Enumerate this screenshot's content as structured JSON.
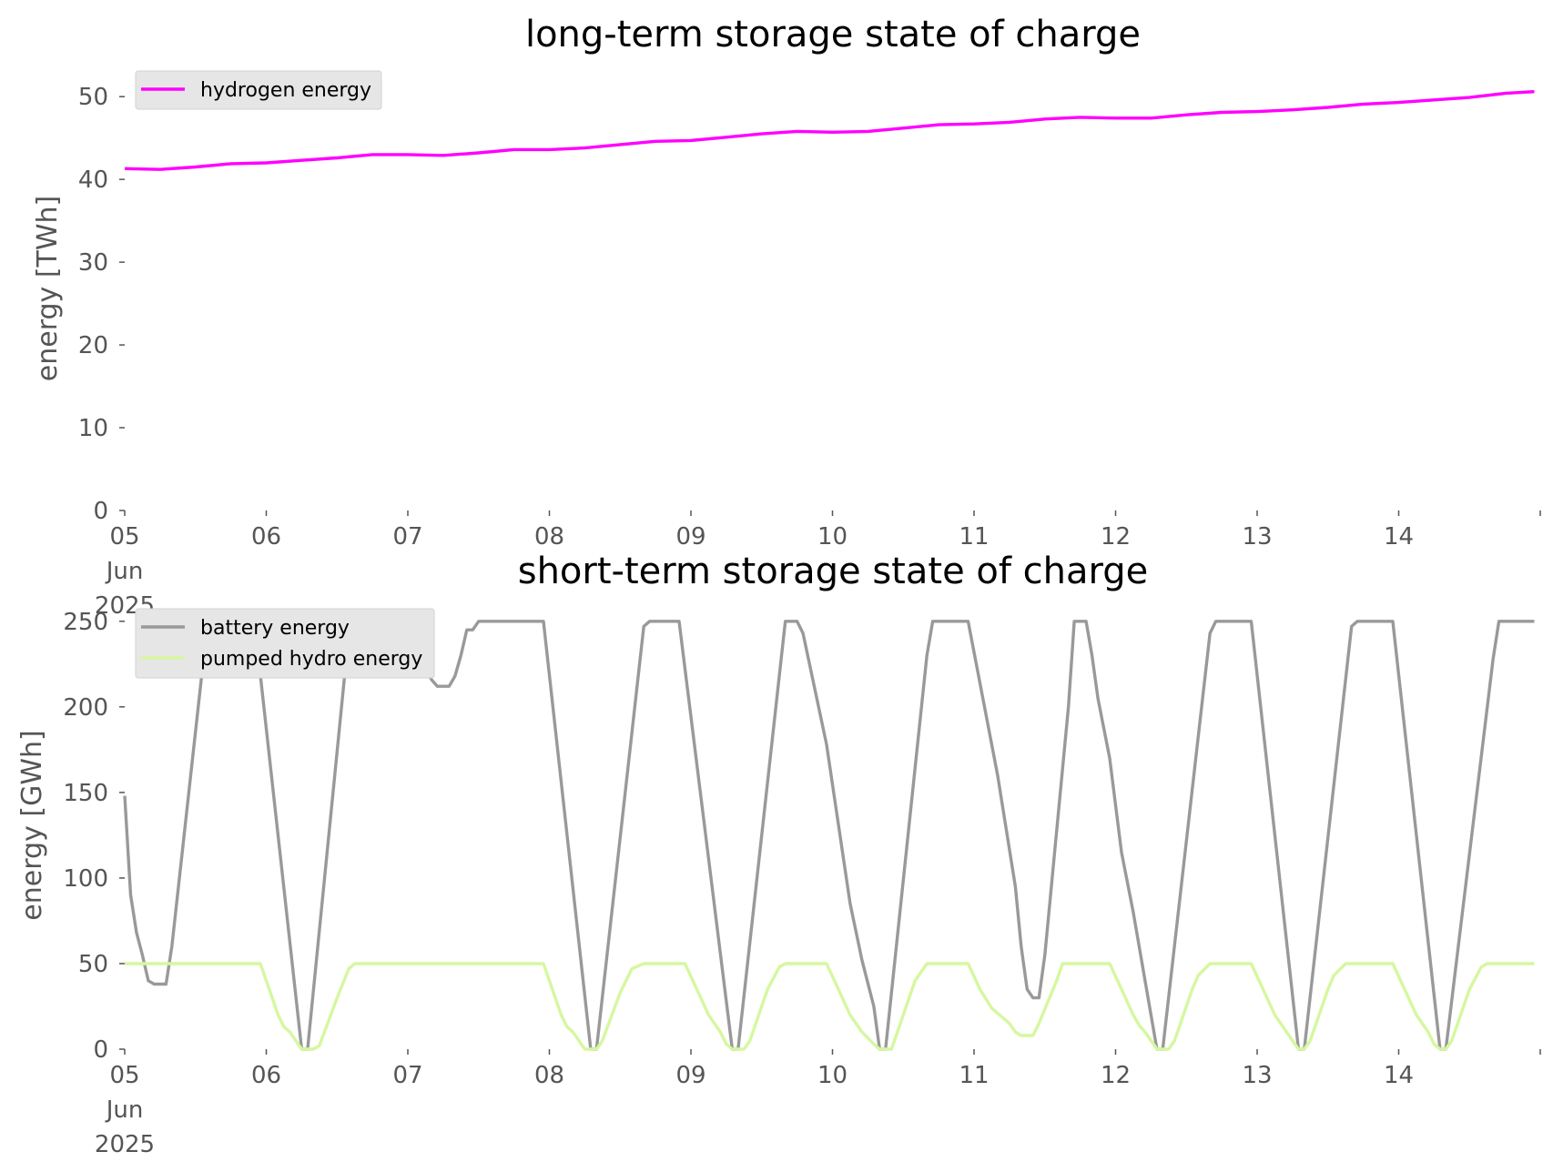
{
  "chart_data": [
    {
      "type": "line",
      "title": "long-term storage state of charge",
      "xlabel": "",
      "ylabel": "energy [TWh]",
      "ylim": [
        0,
        52
      ],
      "xlim": [
        "2025-06-05 00:00",
        "2025-06-15 00:00"
      ],
      "yticks": [
        "0",
        "10",
        "20",
        "30",
        "40",
        "50"
      ],
      "xticks": [
        "05\nJun\n2025",
        "06",
        "07",
        "08",
        "09",
        "10",
        "11",
        "12",
        "13",
        "14"
      ],
      "grid": false,
      "legend_position": "upper-left",
      "colors": {
        "hydrogen energy": "#ff00ff"
      },
      "x": [
        "2025-06-05 00:00",
        "2025-06-05 06:00",
        "2025-06-05 12:00",
        "2025-06-05 18:00",
        "2025-06-06 00:00",
        "2025-06-06 06:00",
        "2025-06-06 12:00",
        "2025-06-06 18:00",
        "2025-06-07 00:00",
        "2025-06-07 06:00",
        "2025-06-07 12:00",
        "2025-06-07 18:00",
        "2025-06-08 00:00",
        "2025-06-08 06:00",
        "2025-06-08 12:00",
        "2025-06-08 18:00",
        "2025-06-09 00:00",
        "2025-06-09 06:00",
        "2025-06-09 12:00",
        "2025-06-09 18:00",
        "2025-06-10 00:00",
        "2025-06-10 06:00",
        "2025-06-10 12:00",
        "2025-06-10 18:00",
        "2025-06-11 00:00",
        "2025-06-11 06:00",
        "2025-06-11 12:00",
        "2025-06-11 18:00",
        "2025-06-12 00:00",
        "2025-06-12 06:00",
        "2025-06-12 12:00",
        "2025-06-12 18:00",
        "2025-06-13 00:00",
        "2025-06-13 06:00",
        "2025-06-13 12:00",
        "2025-06-13 18:00",
        "2025-06-14 00:00",
        "2025-06-14 06:00",
        "2025-06-14 12:00",
        "2025-06-14 18:00",
        "2025-06-14 23:00"
      ],
      "series": [
        {
          "name": "hydrogen energy",
          "values": [
            41.3,
            41.2,
            41.5,
            41.9,
            42.0,
            42.3,
            42.6,
            43.0,
            43.0,
            42.9,
            43.2,
            43.6,
            43.6,
            43.8,
            44.2,
            44.6,
            44.7,
            45.1,
            45.5,
            45.8,
            45.7,
            45.8,
            46.2,
            46.6,
            46.7,
            46.9,
            47.3,
            47.5,
            47.4,
            47.4,
            47.8,
            48.1,
            48.2,
            48.4,
            48.7,
            49.1,
            49.3,
            49.6,
            49.9,
            50.4,
            50.6
          ]
        }
      ]
    },
    {
      "type": "line",
      "title": "short-term storage state of charge",
      "xlabel": "",
      "ylabel": "energy [GWh]",
      "ylim": [
        0,
        252
      ],
      "xlim": [
        "2025-06-05 00:00",
        "2025-06-15 00:00"
      ],
      "yticks": [
        "0",
        "50",
        "100",
        "150",
        "200",
        "250"
      ],
      "xticks": [
        "05\nJun\n2025",
        "06",
        "07",
        "08",
        "09",
        "10",
        "11",
        "12",
        "13",
        "14"
      ],
      "grid": false,
      "legend_position": "upper-left",
      "colors": {
        "battery energy": "#999999",
        "pumped hydro energy": "#d6f7a0"
      },
      "series": [
        {
          "name": "battery energy",
          "points": [
            [
              "2025-06-05 00:00",
              148
            ],
            [
              "2025-06-05 01:00",
              90
            ],
            [
              "2025-06-05 02:00",
              68
            ],
            [
              "2025-06-05 03:00",
              55
            ],
            [
              "2025-06-05 04:00",
              40
            ],
            [
              "2025-06-05 05:00",
              38
            ],
            [
              "2025-06-05 07:00",
              38
            ],
            [
              "2025-06-05 08:00",
              60
            ],
            [
              "2025-06-05 14:00",
              248
            ],
            [
              "2025-06-05 15:00",
              250
            ],
            [
              "2025-06-05 22:00",
              250
            ],
            [
              "2025-06-06 06:00",
              0
            ],
            [
              "2025-06-06 07:00",
              0
            ],
            [
              "2025-06-06 14:00",
              243
            ],
            [
              "2025-06-06 15:00",
              250
            ],
            [
              "2025-06-06 22:00",
              250
            ],
            [
              "2025-06-07 02:00",
              228
            ],
            [
              "2025-06-07 04:00",
              216
            ],
            [
              "2025-06-07 05:00",
              212
            ],
            [
              "2025-06-07 07:00",
              212
            ],
            [
              "2025-06-07 08:00",
              218
            ],
            [
              "2025-06-07 09:00",
              230
            ],
            [
              "2025-06-07 10:00",
              245
            ],
            [
              "2025-06-07 11:00",
              245
            ],
            [
              "2025-06-07 12:00",
              250
            ],
            [
              "2025-06-07 23:00",
              250
            ],
            [
              "2025-06-08 07:00",
              0
            ],
            [
              "2025-06-08 08:00",
              0
            ],
            [
              "2025-06-08 16:00",
              247
            ],
            [
              "2025-06-08 17:00",
              250
            ],
            [
              "2025-06-08 22:00",
              250
            ],
            [
              "2025-06-09 07:00",
              0
            ],
            [
              "2025-06-09 08:00",
              0
            ],
            [
              "2025-06-09 16:00",
              250
            ],
            [
              "2025-06-09 18:00",
              250
            ],
            [
              "2025-06-09 19:00",
              243
            ],
            [
              "2025-06-09 23:00",
              178
            ],
            [
              "2025-06-10 03:00",
              85
            ],
            [
              "2025-06-10 05:00",
              52
            ],
            [
              "2025-06-10 07:00",
              25
            ],
            [
              "2025-06-10 08:00",
              0
            ],
            [
              "2025-06-10 09:00",
              0
            ],
            [
              "2025-06-10 16:00",
              230
            ],
            [
              "2025-06-10 17:00",
              250
            ],
            [
              "2025-06-10 23:00",
              250
            ],
            [
              "2025-06-11 04:00",
              160
            ],
            [
              "2025-06-11 07:00",
              95
            ],
            [
              "2025-06-11 08:00",
              60
            ],
            [
              "2025-06-11 09:00",
              35
            ],
            [
              "2025-06-11 10:00",
              30
            ],
            [
              "2025-06-11 11:00",
              30
            ],
            [
              "2025-06-11 12:00",
              55
            ],
            [
              "2025-06-11 16:00",
              200
            ],
            [
              "2025-06-11 17:00",
              250
            ],
            [
              "2025-06-11 19:00",
              250
            ],
            [
              "2025-06-11 20:00",
              230
            ],
            [
              "2025-06-11 21:00",
              205
            ],
            [
              "2025-06-11 23:00",
              170
            ],
            [
              "2025-06-12 01:00",
              115
            ],
            [
              "2025-06-12 03:00",
              80
            ],
            [
              "2025-06-12 05:00",
              40
            ],
            [
              "2025-06-12 07:00",
              0
            ],
            [
              "2025-06-12 08:00",
              0
            ],
            [
              "2025-06-12 16:00",
              243
            ],
            [
              "2025-06-12 17:00",
              250
            ],
            [
              "2025-06-12 23:00",
              250
            ],
            [
              "2025-06-13 07:00",
              0
            ],
            [
              "2025-06-13 08:00",
              0
            ],
            [
              "2025-06-13 16:00",
              247
            ],
            [
              "2025-06-13 17:00",
              250
            ],
            [
              "2025-06-13 23:00",
              250
            ],
            [
              "2025-06-14 07:00",
              0
            ],
            [
              "2025-06-14 08:00",
              0
            ],
            [
              "2025-06-14 16:00",
              228
            ],
            [
              "2025-06-14 17:00",
              250
            ],
            [
              "2025-06-14 23:00",
              250
            ]
          ]
        },
        {
          "name": "pumped hydro energy",
          "points": [
            [
              "2025-06-05 00:00",
              50
            ],
            [
              "2025-06-05 23:00",
              50
            ],
            [
              "2025-06-06 01:00",
              30
            ],
            [
              "2025-06-06 02:00",
              20
            ],
            [
              "2025-06-06 03:00",
              13
            ],
            [
              "2025-06-06 04:00",
              10
            ],
            [
              "2025-06-06 05:00",
              5
            ],
            [
              "2025-06-06 06:00",
              0
            ],
            [
              "2025-06-06 08:00",
              0
            ],
            [
              "2025-06-06 09:00",
              2
            ],
            [
              "2025-06-06 12:00",
              30
            ],
            [
              "2025-06-06 14:00",
              47
            ],
            [
              "2025-06-06 15:00",
              50
            ],
            [
              "2025-06-07 23:00",
              50
            ],
            [
              "2025-06-08 01:00",
              30
            ],
            [
              "2025-06-08 02:00",
              20
            ],
            [
              "2025-06-08 03:00",
              13
            ],
            [
              "2025-06-08 04:00",
              10
            ],
            [
              "2025-06-08 05:00",
              5
            ],
            [
              "2025-06-08 06:00",
              0
            ],
            [
              "2025-06-08 08:00",
              0
            ],
            [
              "2025-06-08 09:00",
              5
            ],
            [
              "2025-06-08 12:00",
              33
            ],
            [
              "2025-06-08 14:00",
              47
            ],
            [
              "2025-06-08 16:00",
              50
            ],
            [
              "2025-06-08 23:00",
              50
            ],
            [
              "2025-06-09 01:00",
              35
            ],
            [
              "2025-06-09 03:00",
              20
            ],
            [
              "2025-06-09 04:00",
              15
            ],
            [
              "2025-06-09 05:00",
              10
            ],
            [
              "2025-06-09 06:00",
              3
            ],
            [
              "2025-06-09 07:00",
              0
            ],
            [
              "2025-06-09 09:00",
              0
            ],
            [
              "2025-06-09 10:00",
              5
            ],
            [
              "2025-06-09 13:00",
              35
            ],
            [
              "2025-06-09 15:00",
              48
            ],
            [
              "2025-06-09 16:00",
              50
            ],
            [
              "2025-06-09 23:00",
              50
            ],
            [
              "2025-06-10 01:00",
              35
            ],
            [
              "2025-06-10 03:00",
              20
            ],
            [
              "2025-06-10 05:00",
              10
            ],
            [
              "2025-06-10 07:00",
              3
            ],
            [
              "2025-06-10 08:00",
              0
            ],
            [
              "2025-06-10 10:00",
              0
            ],
            [
              "2025-06-10 11:00",
              10
            ],
            [
              "2025-06-10 14:00",
              40
            ],
            [
              "2025-06-10 16:00",
              50
            ],
            [
              "2025-06-10 23:00",
              50
            ],
            [
              "2025-06-11 01:00",
              35
            ],
            [
              "2025-06-11 03:00",
              24
            ],
            [
              "2025-06-11 05:00",
              18
            ],
            [
              "2025-06-11 06:00",
              15
            ],
            [
              "2025-06-11 07:00",
              10
            ],
            [
              "2025-06-11 08:00",
              8
            ],
            [
              "2025-06-11 10:00",
              8
            ],
            [
              "2025-06-11 11:00",
              15
            ],
            [
              "2025-06-11 14:00",
              40
            ],
            [
              "2025-06-11 15:00",
              50
            ],
            [
              "2025-06-11 23:00",
              50
            ],
            [
              "2025-06-12 01:00",
              35
            ],
            [
              "2025-06-12 03:00",
              20
            ],
            [
              "2025-06-12 04:00",
              14
            ],
            [
              "2025-06-12 05:00",
              10
            ],
            [
              "2025-06-12 06:00",
              5
            ],
            [
              "2025-06-12 07:00",
              0
            ],
            [
              "2025-06-12 09:00",
              0
            ],
            [
              "2025-06-12 10:00",
              5
            ],
            [
              "2025-06-12 13:00",
              35
            ],
            [
              "2025-06-12 14:00",
              43
            ],
            [
              "2025-06-12 16:00",
              50
            ],
            [
              "2025-06-12 23:00",
              50
            ],
            [
              "2025-06-13 01:00",
              35
            ],
            [
              "2025-06-13 03:00",
              20
            ],
            [
              "2025-06-13 05:00",
              10
            ],
            [
              "2025-06-13 06:00",
              5
            ],
            [
              "2025-06-13 07:00",
              0
            ],
            [
              "2025-06-13 08:00",
              0
            ],
            [
              "2025-06-13 09:00",
              5
            ],
            [
              "2025-06-13 12:00",
              35
            ],
            [
              "2025-06-13 13:00",
              43
            ],
            [
              "2025-06-13 15:00",
              50
            ],
            [
              "2025-06-13 23:00",
              50
            ],
            [
              "2025-06-14 01:00",
              35
            ],
            [
              "2025-06-14 03:00",
              20
            ],
            [
              "2025-06-14 05:00",
              10
            ],
            [
              "2025-06-14 06:00",
              3
            ],
            [
              "2025-06-14 07:00",
              0
            ],
            [
              "2025-06-14 08:00",
              0
            ],
            [
              "2025-06-14 09:00",
              5
            ],
            [
              "2025-06-14 12:00",
              35
            ],
            [
              "2025-06-14 14:00",
              48
            ],
            [
              "2025-06-14 15:00",
              50
            ],
            [
              "2025-06-14 23:00",
              50
            ]
          ]
        }
      ]
    }
  ]
}
